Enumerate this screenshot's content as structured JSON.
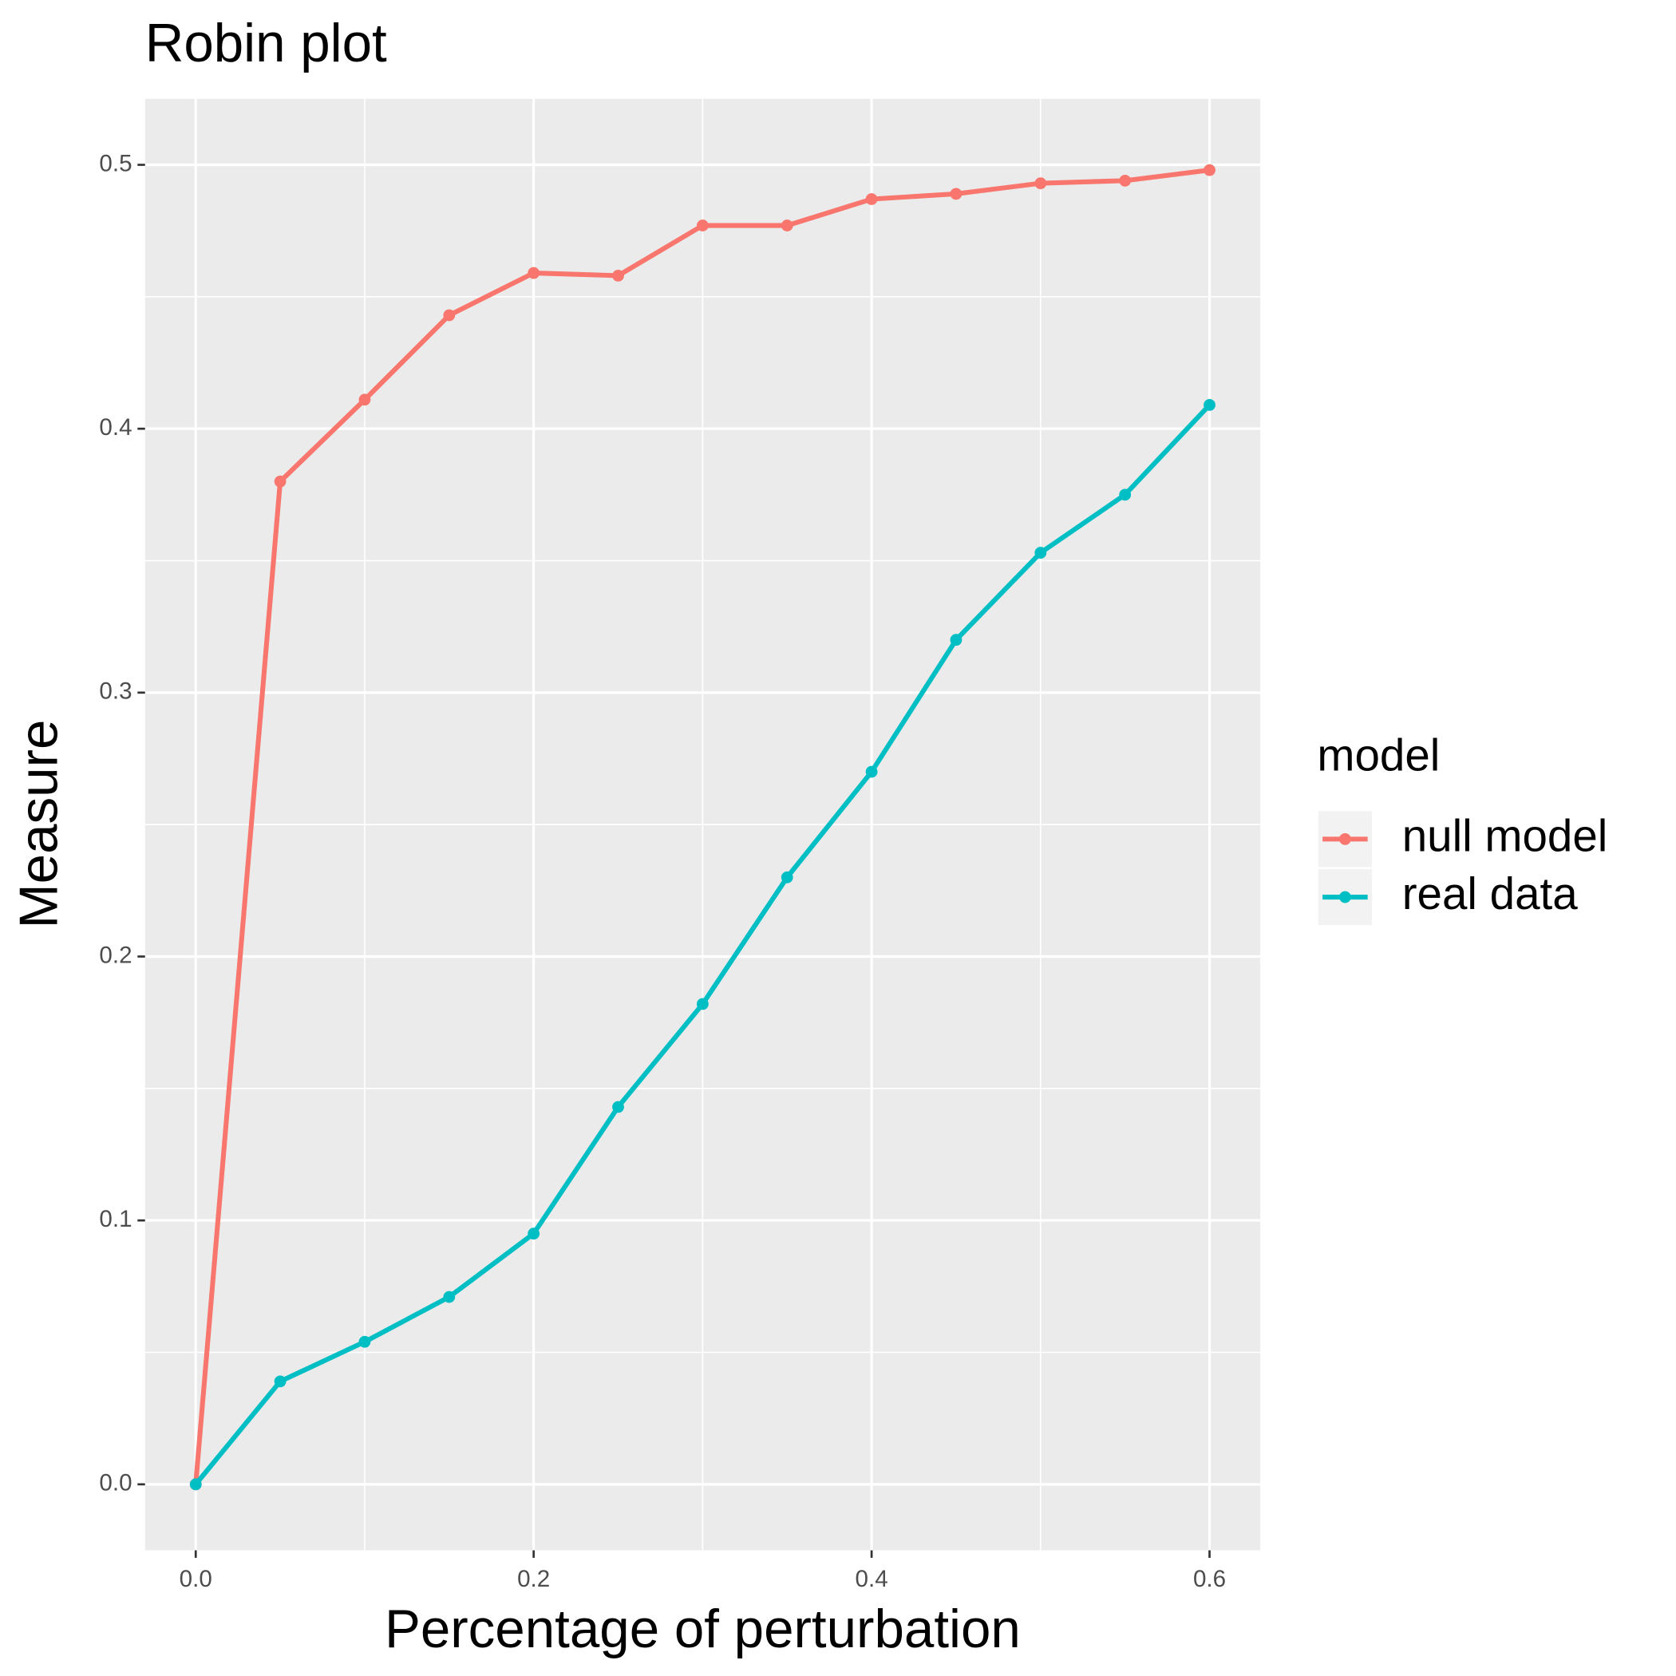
{
  "chart_data": {
    "type": "line",
    "title": "Robin plot",
    "x_label": "Percentage of perturbation",
    "y_label": "Measure",
    "x": [
      0,
      0.05,
      0.1,
      0.15,
      0.2,
      0.25,
      0.3,
      0.35,
      0.4,
      0.45,
      0.5,
      0.55,
      0.6
    ],
    "series": [
      {
        "name": "null model",
        "color": "#F8766D",
        "values": [
          0,
          0.38,
          0.411,
          0.443,
          0.459,
          0.458,
          0.477,
          0.477,
          0.487,
          0.489,
          0.493,
          0.494,
          0.498
        ]
      },
      {
        "name": "real data",
        "color": "#00BFC4",
        "values": [
          0,
          0.039,
          0.054,
          0.071,
          0.095,
          0.143,
          0.182,
          0.23,
          0.27,
          0.32,
          0.353,
          0.375,
          0.409
        ]
      }
    ],
    "legend_title": "model",
    "legend": "right",
    "xlim": [
      -0.03,
      0.63
    ],
    "xticks": [
      {
        "value": 0,
        "label": "0.0"
      },
      0.2,
      0.4,
      0.6
    ],
    "ylim": [
      -0.025,
      0.525
    ],
    "yticks": [
      {
        "value": 0,
        "label": "0.0"
      },
      0.1,
      0.2,
      0.3,
      0.4,
      0.5
    ],
    "grid": true,
    "minor_grid": true
  }
}
